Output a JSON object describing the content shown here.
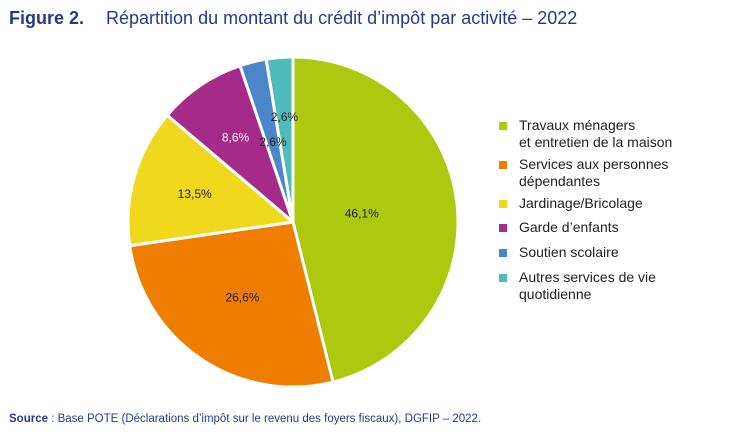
{
  "figure": {
    "label": "Figure 2.",
    "title": "Répartition du montant du crédit d’impôt par activité – 2022"
  },
  "source": {
    "key": "Source",
    "text": " : Base POTE (Déclarations d’impôt sur le revenu des foyers fiscaux), DGFIP – 2022."
  },
  "chart_data": {
    "type": "pie",
    "title": "Répartition du montant du crédit d’impôt par activité – 2022",
    "start": "top",
    "direction": "clockwise",
    "legend_position": "right",
    "unit": "%",
    "slices": [
      {
        "label": "Travaux ménagers et entretien de la maison",
        "legend_lines": [
          "Travaux ménagers",
          "et entretien de la maison"
        ],
        "value": 46.1,
        "value_label": "46,1%",
        "color": "#acc90f",
        "label_color": "#1f1f1f"
      },
      {
        "label": "Services aux personnes dépendantes",
        "legend_lines": [
          "Services aux personnes",
          "dépendantes"
        ],
        "value": 26.6,
        "value_label": "26,6%",
        "color": "#ef7d00",
        "label_color": "#1f1f1f"
      },
      {
        "label": "Jardinage/Bricolage",
        "legend_lines": [
          "Jardinage/Bricolage"
        ],
        "value": 13.5,
        "value_label": "13,5%",
        "color": "#f0d81c",
        "label_color": "#1f1f1f"
      },
      {
        "label": "Garde d’enfants",
        "legend_lines": [
          "Garde d’enfants"
        ],
        "value": 8.6,
        "value_label": "8,6%",
        "color": "#a62a87",
        "label_color": "#ffffff"
      },
      {
        "label": "Soutien scolaire",
        "legend_lines": [
          "Soutien scolaire"
        ],
        "value": 2.6,
        "value_label": "2,6%",
        "color": "#4a86c8",
        "label_color": "#1f1f1f"
      },
      {
        "label": "Autres services de vie quotidienne",
        "legend_lines": [
          "Autres services de vie",
          "quotidienne"
        ],
        "value": 2.6,
        "value_label": "2,6%",
        "color": "#4fbcb9",
        "label_color": "#1f1f1f"
      }
    ]
  }
}
